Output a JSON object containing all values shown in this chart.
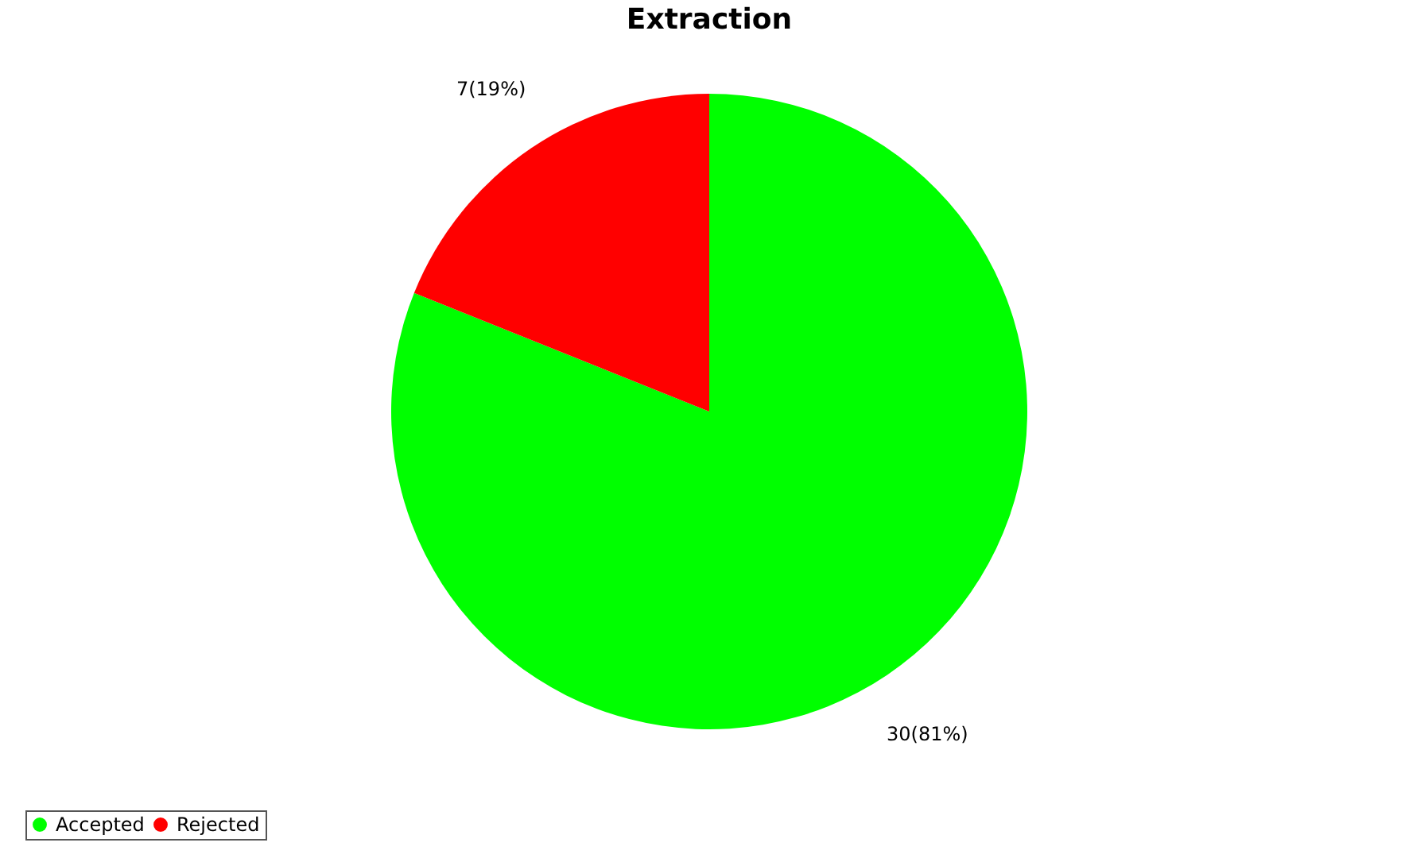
{
  "chart_data": {
    "type": "pie",
    "title": "Extraction",
    "categories": [
      "Accepted",
      "Rejected"
    ],
    "values": [
      30,
      7
    ],
    "colors": [
      "#00ff00",
      "#ff0000"
    ],
    "value_labels": [
      "30(81%)",
      "7(19%)"
    ],
    "legend": "bottom"
  }
}
